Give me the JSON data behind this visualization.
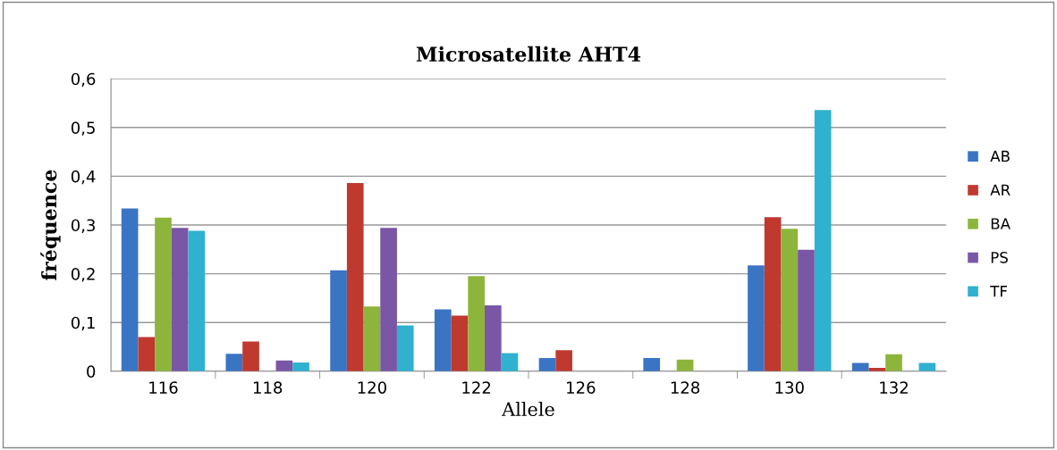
{
  "chart_data": {
    "type": "bar",
    "title": "Microsatellite AHT4",
    "xlabel": "Allele",
    "ylabel": "fréquence",
    "categories": [
      "116",
      "118",
      "120",
      "122",
      "126",
      "128",
      "130",
      "132"
    ],
    "series": [
      {
        "name": "AB",
        "color": "#3a75c4",
        "values": [
          0.334,
          0.036,
          0.207,
          0.127,
          0.027,
          0.027,
          0.217,
          0.017
        ]
      },
      {
        "name": "AR",
        "color": "#c0392f",
        "values": [
          0.07,
          0.061,
          0.386,
          0.114,
          0.043,
          0,
          0.316,
          0.007
        ]
      },
      {
        "name": "BA",
        "color": "#8db53c",
        "values": [
          0.315,
          0,
          0.133,
          0.195,
          0,
          0.024,
          0.292,
          0.035
        ]
      },
      {
        "name": "PS",
        "color": "#7a56a6",
        "values": [
          0.294,
          0.022,
          0.294,
          0.135,
          0,
          0,
          0.249,
          0
        ]
      },
      {
        "name": "TF",
        "color": "#2fb1cf",
        "values": [
          0.288,
          0.018,
          0.094,
          0.037,
          0,
          0,
          0.536,
          0.017
        ]
      }
    ],
    "ylim": [
      0,
      0.6
    ],
    "yticks": [
      0,
      {
        "value": 0.1,
        "label": "0,1"
      },
      {
        "value": 0.2,
        "label": "0,2"
      },
      {
        "value": 0.3,
        "label": "0,3"
      },
      {
        "value": 0.4,
        "label": "0,4"
      },
      {
        "value": 0.5,
        "label": "0,5"
      },
      {
        "value": 0.6,
        "label": "0,6"
      }
    ],
    "grid": "y",
    "legend": "right"
  }
}
